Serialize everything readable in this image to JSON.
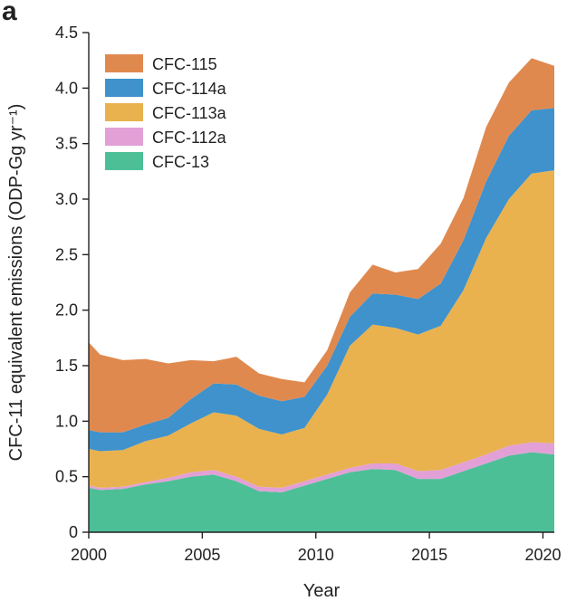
{
  "panel_label": "a",
  "chart_data": {
    "type": "area",
    "stacked": true,
    "xlabel": "Year",
    "ylabel": "CFC-11 equivalent emissions (ODP-Gg yr⁻¹)",
    "xlim": [
      2000,
      2020.5
    ],
    "ylim": [
      0,
      4.5
    ],
    "x_ticks": [
      2000,
      2005,
      2010,
      2015,
      2020
    ],
    "y_ticks": [
      0,
      0.5,
      1.0,
      1.5,
      2.0,
      2.5,
      3.0,
      3.5,
      4.0,
      4.5
    ],
    "y_tick_labels": [
      "0",
      "0.5",
      "1.0",
      "1.5",
      "2.0",
      "2.5",
      "3.0",
      "3.5",
      "4.0",
      "4.5"
    ],
    "legend_position": "top-left",
    "grid": false,
    "x": [
      2000,
      2000.5,
      2001.5,
      2002.5,
      2003.5,
      2004.5,
      2005.5,
      2006.5,
      2007.5,
      2008.5,
      2009.5,
      2010.5,
      2011.5,
      2012.5,
      2013.5,
      2014.5,
      2015.5,
      2016.5,
      2017.5,
      2018.5,
      2019.5,
      2020.5
    ],
    "series": [
      {
        "name": "CFC-13",
        "color": "#4dbf97",
        "values": [
          0.4,
          0.38,
          0.39,
          0.43,
          0.46,
          0.5,
          0.52,
          0.46,
          0.37,
          0.36,
          0.42,
          0.48,
          0.54,
          0.57,
          0.56,
          0.48,
          0.48,
          0.55,
          0.62,
          0.69,
          0.72,
          0.7
        ]
      },
      {
        "name": "CFC-112a",
        "color": "#e2a0d6",
        "values": [
          0.02,
          0.02,
          0.02,
          0.02,
          0.03,
          0.04,
          0.04,
          0.04,
          0.04,
          0.04,
          0.04,
          0.04,
          0.04,
          0.05,
          0.06,
          0.07,
          0.08,
          0.08,
          0.08,
          0.09,
          0.09,
          0.1
        ]
      },
      {
        "name": "CFC-113a",
        "color": "#e9b24f",
        "values": [
          0.33,
          0.33,
          0.33,
          0.37,
          0.38,
          0.44,
          0.52,
          0.55,
          0.52,
          0.48,
          0.48,
          0.72,
          1.1,
          1.25,
          1.22,
          1.23,
          1.3,
          1.55,
          1.95,
          2.22,
          2.42,
          2.46
        ]
      },
      {
        "name": "CFC-114a",
        "color": "#3f92cc",
        "values": [
          0.17,
          0.17,
          0.16,
          0.15,
          0.16,
          0.22,
          0.26,
          0.28,
          0.3,
          0.3,
          0.28,
          0.26,
          0.26,
          0.28,
          0.3,
          0.32,
          0.38,
          0.45,
          0.51,
          0.57,
          0.57,
          0.56
        ]
      },
      {
        "name": "CFC-115",
        "color": "#e0894f",
        "values": [
          0.79,
          0.7,
          0.65,
          0.59,
          0.49,
          0.35,
          0.2,
          0.25,
          0.2,
          0.2,
          0.13,
          0.14,
          0.22,
          0.26,
          0.2,
          0.27,
          0.36,
          0.38,
          0.49,
          0.48,
          0.47,
          0.38
        ]
      }
    ],
    "legend_order": [
      "CFC-115",
      "CFC-114a",
      "CFC-113a",
      "CFC-112a",
      "CFC-13"
    ]
  }
}
